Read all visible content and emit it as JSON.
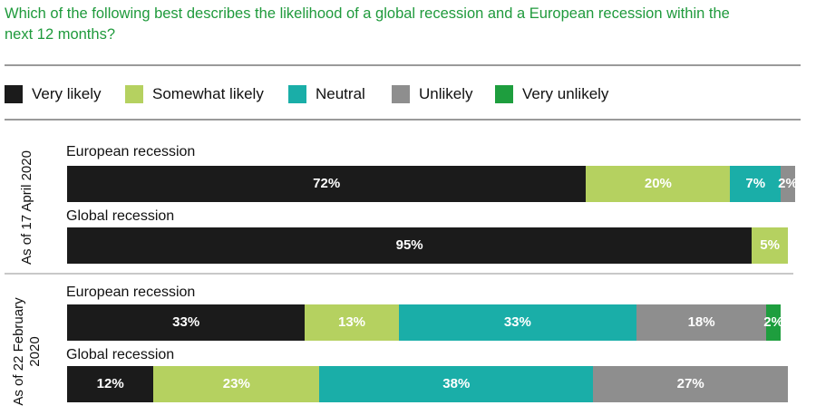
{
  "title": "Which of the following best describes the likelihood of a global recession and a European recession within the next 12 months?",
  "chart_data": {
    "type": "bar",
    "orientation": "horizontal",
    "stacked": true,
    "unit": "%",
    "categories_legend": [
      {
        "name": "Very likely",
        "color": "#1b1b1b"
      },
      {
        "name": "Somewhat likely",
        "color": "#b5d160"
      },
      {
        "name": "Neutral",
        "color": "#1aaea8"
      },
      {
        "name": "Unlikely",
        "color": "#8e8e8e"
      },
      {
        "name": "Very unlikely",
        "color": "#1e9e3e"
      }
    ],
    "groups": [
      {
        "label": "As of 17 April 2020",
        "rows": [
          {
            "label": "European recession",
            "values": [
              72,
              20,
              7,
              2,
              0
            ],
            "labels": [
              "72%",
              "20%",
              "7%",
              "2%",
              ""
            ]
          },
          {
            "label": "Global recession",
            "values": [
              95,
              5,
              0,
              0,
              0
            ],
            "labels": [
              "95%",
              "5%",
              "",
              "",
              ""
            ]
          }
        ]
      },
      {
        "label": "As of 22 February 2020",
        "rows": [
          {
            "label": "European recession",
            "values": [
              33,
              13,
              33,
              18,
              2
            ],
            "labels": [
              "33%",
              "13%",
              "33%",
              "18%",
              "2%"
            ]
          },
          {
            "label": "Global recession",
            "values": [
              12,
              23,
              38,
              27,
              0
            ],
            "labels": [
              "12%",
              "23%",
              "38%",
              "27%",
              ""
            ]
          }
        ]
      }
    ]
  }
}
